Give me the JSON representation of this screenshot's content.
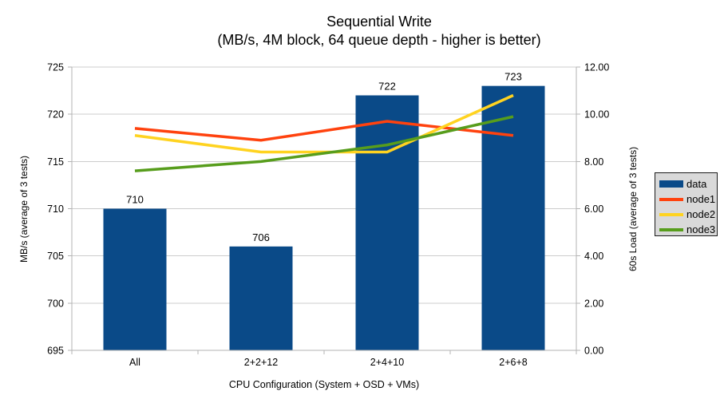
{
  "chart_data": {
    "type": "bar",
    "subtype": "combo bar + line, dual y-axis",
    "title": "Sequential Write",
    "subtitle": "(MB/s, 4M block, 64 queue depth - higher is better)",
    "categories": [
      "All",
      "2+2+12",
      "2+4+10",
      "2+6+8"
    ],
    "xlabel": "CPU Configuration (System + OSD + VMs)",
    "y_left": {
      "label": "MB/s (average of 3 tests)",
      "min": 695,
      "max": 725,
      "step": 5,
      "tick_labels": [
        "695",
        "700",
        "705",
        "710",
        "715",
        "720",
        "725"
      ]
    },
    "y_right": {
      "label": "60s Load (average of 3 tests)",
      "min": 0,
      "max": 12,
      "step": 2,
      "tick_labels": [
        "0.00",
        "2.00",
        "4.00",
        "6.00",
        "8.00",
        "10.00",
        "12.00"
      ]
    },
    "series": [
      {
        "name": "data",
        "kind": "bar",
        "axis": "left",
        "color": "#0a4a88",
        "values": [
          710,
          706,
          722,
          723
        ],
        "data_labels": [
          "710",
          "706",
          "722",
          "723"
        ]
      },
      {
        "name": "node1",
        "kind": "line",
        "axis": "right",
        "color": "#ff420e",
        "values": [
          9.4,
          8.9,
          9.7,
          9.1
        ]
      },
      {
        "name": "node2",
        "kind": "line",
        "axis": "right",
        "color": "#ffd320",
        "values": [
          9.1,
          8.4,
          8.4,
          10.8
        ]
      },
      {
        "name": "node3",
        "kind": "line",
        "axis": "right",
        "color": "#579d1c",
        "values": [
          7.6,
          8.0,
          8.7,
          9.9
        ]
      }
    ],
    "legend": {
      "position": "right",
      "items": [
        "data",
        "node1",
        "node2",
        "node3"
      ]
    },
    "grid": "horizontal",
    "colors": {
      "grid": "#cccccc",
      "axis": "#b3b3b3",
      "legend_bg": "#d9d9d9",
      "legend_border": "#1a1a1a",
      "text": "#000000",
      "background": "#ffffff"
    }
  }
}
